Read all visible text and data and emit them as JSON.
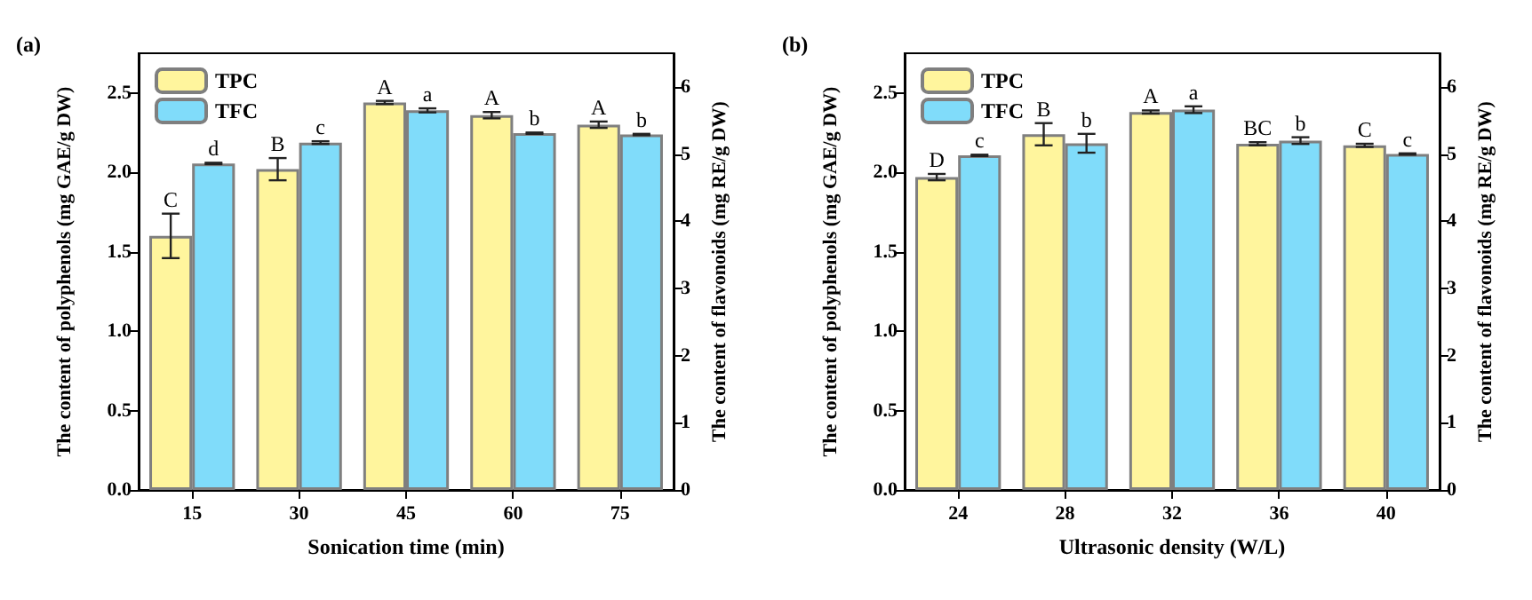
{
  "chart_data": [
    {
      "type": "bar",
      "title": "(a)",
      "xlabel": "Sonication time (min)",
      "ylabel": "The content of polyphenols (mg GAE/g DW)",
      "y2label": "The content of flavonoids (mg RE/g DW)",
      "categories": [
        "15",
        "30",
        "45",
        "60",
        "75"
      ],
      "series": [
        {
          "name": "TPC",
          "color": "#fff59d",
          "values": [
            1.6,
            2.02,
            2.44,
            2.36,
            2.3
          ],
          "errors": [
            0.14,
            0.07,
            0.01,
            0.02,
            0.02
          ],
          "value_labels": [
            "C",
            "B",
            "A",
            "A",
            "A"
          ]
        },
        {
          "name": "TFC",
          "color": "#80dcfa",
          "axis": "y2",
          "values": [
            4.86,
            5.17,
            5.65,
            5.31,
            5.29
          ],
          "errors": [
            0.01,
            0.02,
            0.03,
            0.01,
            0.01
          ],
          "value_labels": [
            "d",
            "c",
            "a",
            "b",
            "b"
          ]
        }
      ],
      "ylim": [
        0,
        2.75
      ],
      "yticks": [
        {
          "value": 0,
          "label": "0.0"
        },
        {
          "value": 0.5,
          "label": "0.5"
        },
        {
          "value": 1,
          "label": "1.0"
        },
        {
          "value": 1.5,
          "label": "1.5"
        },
        {
          "value": 2,
          "label": "2.0"
        },
        {
          "value": 2.5,
          "label": "2.5"
        }
      ],
      "y2lim": [
        0,
        6.5
      ],
      "y2ticks": [
        0,
        1,
        2,
        3,
        4,
        5,
        6
      ],
      "legend": "top left",
      "grid": false
    },
    {
      "type": "bar",
      "title": "(b)",
      "xlabel": "Ultrasonic density (W/L)",
      "ylabel": "The content of polyphenols (mg GAE/g DW)",
      "y2label": "The content of flavonoids (mg RE/g DW)",
      "categories": [
        "24",
        "28",
        "32",
        "36",
        "40"
      ],
      "series": [
        {
          "name": "TPC",
          "color": "#fff59d",
          "values": [
            1.97,
            2.24,
            2.38,
            2.18,
            2.17
          ],
          "errors": [
            0.02,
            0.07,
            0.01,
            0.01,
            0.01
          ],
          "value_labels": [
            "D",
            "B",
            "A",
            "BC",
            "C"
          ]
        },
        {
          "name": "TFC",
          "color": "#80dcfa",
          "axis": "y2",
          "values": [
            4.98,
            5.16,
            5.66,
            5.2,
            5.0
          ],
          "errors": [
            0.01,
            0.14,
            0.05,
            0.05,
            0.01
          ],
          "value_labels": [
            "c",
            "b",
            "a",
            "b",
            "c"
          ]
        }
      ],
      "ylim": [
        0,
        2.75
      ],
      "yticks": [
        {
          "value": 0,
          "label": "0.0"
        },
        {
          "value": 0.5,
          "label": "0.5"
        },
        {
          "value": 1,
          "label": "1.0"
        },
        {
          "value": 1.5,
          "label": "1.5"
        },
        {
          "value": 2,
          "label": "2.0"
        },
        {
          "value": 2.5,
          "label": "2.5"
        }
      ],
      "y2lim": [
        0,
        6.5
      ],
      "y2ticks": [
        0,
        1,
        2,
        3,
        4,
        5,
        6
      ],
      "legend": "top left",
      "grid": false
    }
  ]
}
